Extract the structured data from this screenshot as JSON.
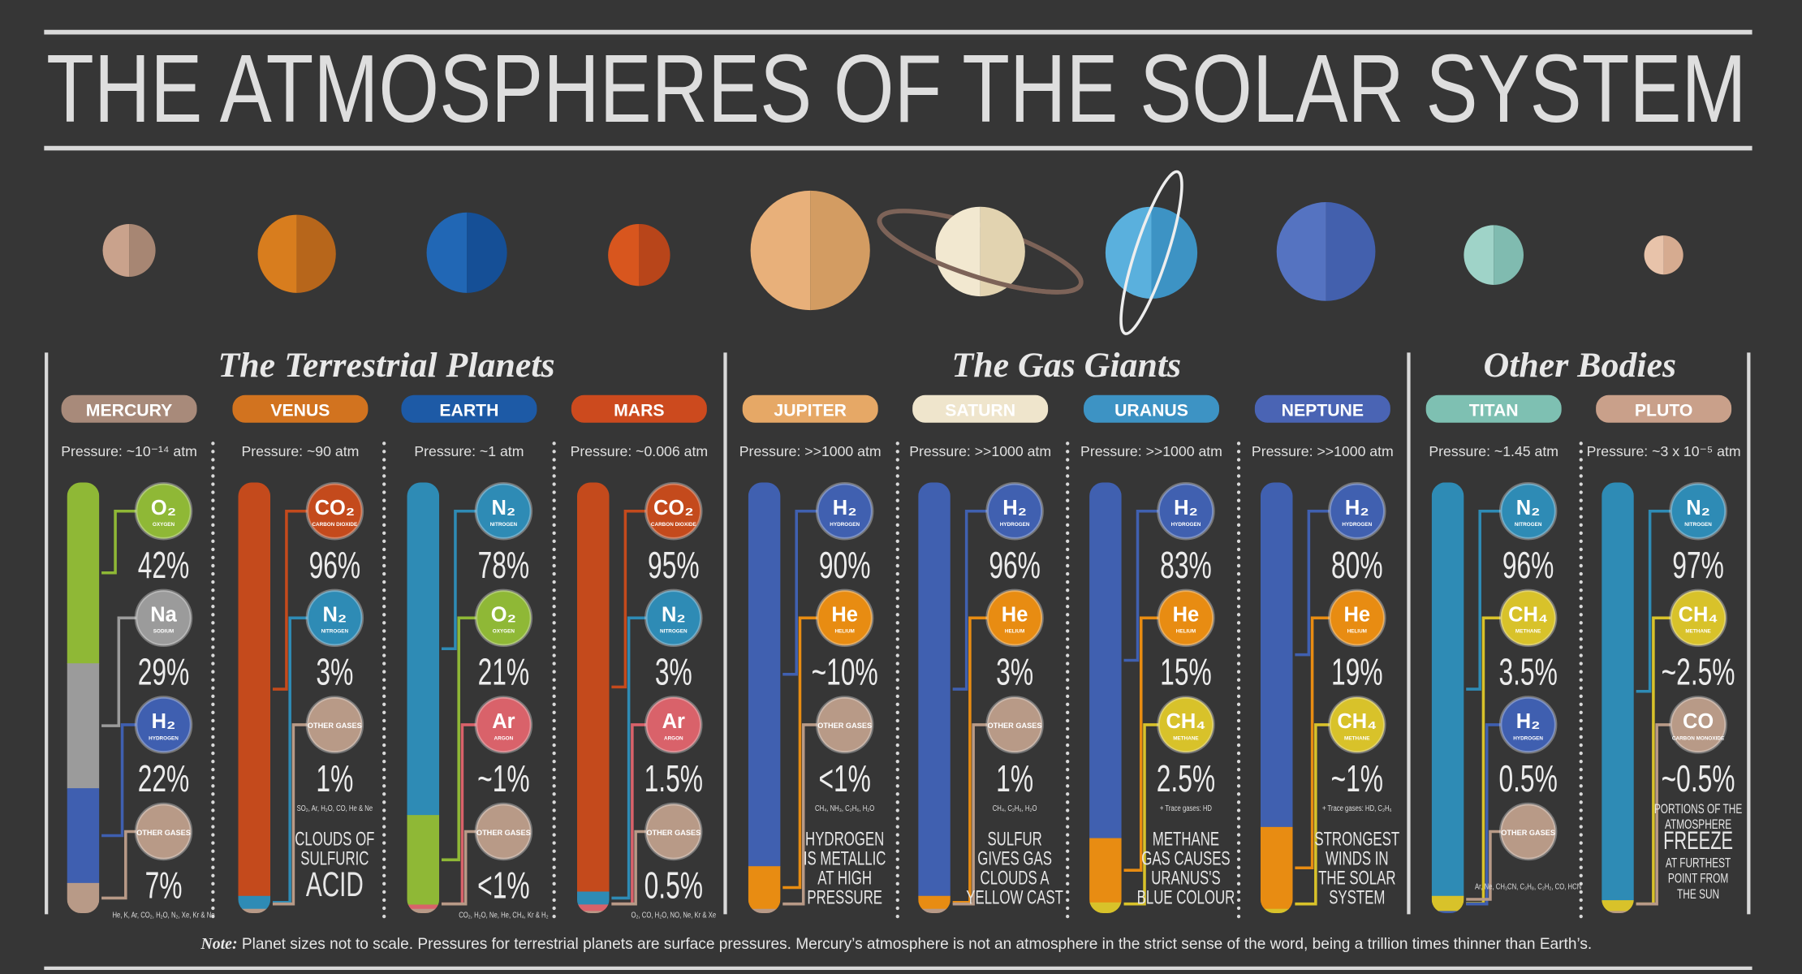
{
  "title": "THE ATMOSPHERES OF THE SOLAR SYSTEM",
  "sections": [
    {
      "title": "The Terrestrial Planets"
    },
    {
      "title": "The Gas Giants"
    },
    {
      "title": "Other Bodies"
    }
  ],
  "planets": [
    {
      "name": "MERCURY",
      "color": "#a88a7a",
      "light": "#c9a28c",
      "dark": "#a78673",
      "pressure": "Pressure: ~10⁻¹⁴ atm",
      "gases": [
        {
          "formula": "O₂",
          "name": "OXYGEN",
          "value": 42,
          "label": "42%",
          "color": "#8fb836"
        },
        {
          "formula": "Na",
          "name": "SODIUM",
          "value": 29,
          "label": "29%",
          "color": "#9b9b9b"
        },
        {
          "formula": "H₂",
          "name": "HYDROGEN",
          "value": 22,
          "label": "22%",
          "color": "#3f5fb0"
        },
        {
          "formula": "OTHER GASES",
          "value": 7,
          "label": "7%",
          "color": "#b89a87",
          "trace": "He, K, Ar, CO₂, H₂O, N₂, Xe, Kr & Ne"
        }
      ]
    },
    {
      "name": "VENUS",
      "color": "#d2731f",
      "light": "#d87d1e",
      "dark": "#b7661b",
      "pressure": "Pressure: ~90 atm",
      "gases": [
        {
          "formula": "CO₂",
          "name": "CARBON DIOXIDE",
          "value": 96,
          "label": "96%",
          "color": "#c44a1c"
        },
        {
          "formula": "N₂",
          "name": "NITROGEN",
          "value": 3,
          "label": "3%",
          "color": "#2e8bb5"
        },
        {
          "formula": "OTHER GASES",
          "value": 1,
          "label": "1%",
          "color": "#b89a87",
          "trace": "SO₂, Ar, H₂O, CO, He & Ne"
        }
      ],
      "note": [
        "CLOUDS OF",
        "SULFURIC",
        "ACID"
      ]
    },
    {
      "name": "EARTH",
      "color": "#1d5aa6",
      "light": "#2167b5",
      "dark": "#154f96",
      "pressure": "Pressure: ~1 atm",
      "gases": [
        {
          "formula": "N₂",
          "name": "NITROGEN",
          "value": 78,
          "label": "78%",
          "color": "#2e8bb5"
        },
        {
          "formula": "O₂",
          "name": "OXYGEN",
          "value": 21,
          "label": "21%",
          "color": "#8fb836"
        },
        {
          "formula": "Ar",
          "name": "ARGON",
          "value": 1,
          "label": "~1%",
          "color": "#d9626a"
        },
        {
          "formula": "OTHER GASES",
          "value": 1,
          "label": "<1%",
          "color": "#b89a87",
          "trace": "CO₂, H₂O, Ne, He, CH₄, Kr & H₂"
        }
      ]
    },
    {
      "name": "MARS",
      "color": "#cc4a1e",
      "light": "#d8561e",
      "dark": "#b8451a",
      "pressure": "Pressure: ~0.006 atm",
      "gases": [
        {
          "formula": "CO₂",
          "name": "CARBON DIOXIDE",
          "value": 95,
          "label": "95%",
          "color": "#c44a1c"
        },
        {
          "formula": "N₂",
          "name": "NITROGEN",
          "value": 3,
          "label": "3%",
          "color": "#2e8bb5"
        },
        {
          "formula": "Ar",
          "name": "ARGON",
          "value": 1.5,
          "label": "1.5%",
          "color": "#d9626a"
        },
        {
          "formula": "OTHER GASES",
          "value": 0.5,
          "label": "0.5%",
          "color": "#b89a87",
          "trace": "O₂, CO, H₂O, NO, Ne, Kr & Xe"
        }
      ]
    },
    {
      "name": "JUPITER",
      "color": "#e6a866",
      "light": "#e8b07a",
      "dark": "#d39c62",
      "pressure": "Pressure: >>1000 atm",
      "gases": [
        {
          "formula": "H₂",
          "name": "HYDROGEN",
          "value": 90,
          "label": "90%",
          "color": "#4060b0"
        },
        {
          "formula": "He",
          "name": "HELIUM",
          "value": 10,
          "label": "~10%",
          "color": "#e88c12"
        },
        {
          "formula": "OTHER GASES",
          "value": 1,
          "label": "<1%",
          "color": "#b89a87",
          "trace": "CH₄, NH₃, C₂H₆, H₂O"
        }
      ],
      "note": [
        "HYDROGEN",
        "IS METALLIC",
        "AT HIGH",
        "PRESSURE"
      ]
    },
    {
      "name": "SATURN",
      "color": "#efe5cc",
      "light": "#f2e8d0",
      "dark": "#e2d3b0",
      "pressure": "Pressure: >>1000 atm",
      "gases": [
        {
          "formula": "H₂",
          "name": "HYDROGEN",
          "value": 96,
          "label": "96%",
          "color": "#4060b0"
        },
        {
          "formula": "He",
          "name": "HELIUM",
          "value": 3,
          "label": "3%",
          "color": "#e88c12"
        },
        {
          "formula": "OTHER GASES",
          "value": 1,
          "label": "1%",
          "color": "#b89a87",
          "trace": "CH₄, C₂H₆, H₂O"
        }
      ],
      "note": [
        "SULFUR",
        "GIVES GAS",
        "CLOUDS A",
        "YELLOW CAST"
      ]
    },
    {
      "name": "URANUS",
      "color": "#3d93c4",
      "light": "#5ab0dd",
      "dark": "#3d93c4",
      "pressure": "Pressure: >>1000 atm",
      "gases": [
        {
          "formula": "H₂",
          "name": "HYDROGEN",
          "value": 83,
          "label": "83%",
          "color": "#4060b0"
        },
        {
          "formula": "He",
          "name": "HELIUM",
          "value": 15,
          "label": "15%",
          "color": "#e88c12"
        },
        {
          "formula": "CH₄",
          "name": "METHANE",
          "value": 2.5,
          "label": "2.5%",
          "color": "#d8c22a",
          "trace": "+ Trace gases: HD"
        }
      ],
      "note": [
        "METHANE",
        "GAS CAUSES",
        "URANUS'S",
        "BLUE COLOUR"
      ]
    },
    {
      "name": "NEPTUNE",
      "color": "#4a64b4",
      "light": "#5573c1",
      "dark": "#4360ad",
      "pressure": "Pressure: >>1000 atm",
      "gases": [
        {
          "formula": "H₂",
          "name": "HYDROGEN",
          "value": 80,
          "label": "80%",
          "color": "#4060b0"
        },
        {
          "formula": "He",
          "name": "HELIUM",
          "value": 19,
          "label": "19%",
          "color": "#e88c12"
        },
        {
          "formula": "CH₄",
          "name": "METHANE",
          "value": 1,
          "label": "~1%",
          "color": "#d8c22a",
          "trace": "+ Trace gases: HD, C₂H₆"
        }
      ],
      "note": [
        "STRONGEST",
        "WINDS IN",
        "THE SOLAR",
        "SYSTEM"
      ]
    },
    {
      "name": "TITAN",
      "color": "#7ec0b2",
      "light": "#9fd3c8",
      "dark": "#80bbb0",
      "pressure": "Pressure: ~1.45 atm",
      "gases": [
        {
          "formula": "N₂",
          "name": "NITROGEN",
          "value": 96,
          "label": "96%",
          "color": "#2e8bb5"
        },
        {
          "formula": "CH₄",
          "name": "METHANE",
          "value": 3.5,
          "label": "3.5%",
          "color": "#d8c22a"
        },
        {
          "formula": "H₂",
          "name": "HYDROGEN",
          "value": 0.5,
          "label": "0.5%",
          "color": "#3f5fb0"
        },
        {
          "formula": "OTHER GASES",
          "color": "#b89a87",
          "trace": "Ar, Ne, CH₃CN, C₃H₈, C₂H₂, CO, HCN"
        }
      ]
    },
    {
      "name": "PLUTO",
      "color": "#c9a08a",
      "light": "#e8c3aa",
      "dark": "#d6ab90",
      "pressure": "Pressure: ~3 x 10⁻⁵ atm",
      "gases": [
        {
          "formula": "N₂",
          "name": "NITROGEN",
          "value": 97,
          "label": "97%",
          "color": "#2e8bb5"
        },
        {
          "formula": "CH₄",
          "name": "METHANE",
          "value": 2.5,
          "label": "~2.5%",
          "color": "#d8c22a"
        },
        {
          "formula": "CO",
          "name": "CARBON MONOXIDE",
          "value": 0.5,
          "label": "~0.5%",
          "color": "#b89a87"
        }
      ],
      "note": [
        "PORTIONS OF THE",
        "ATMOSPHERE",
        "FREEZE",
        "AT FURTHEST",
        "POINT FROM",
        "THE SUN"
      ]
    }
  ],
  "footnote": {
    "lead": "Note:",
    "text": "Planet sizes not to scale. Pressures for terrestrial planets are surface pressures. Mercury’s atmosphere is not an atmosphere in the strict sense of the word, being a trillion times thinner than Earth’s."
  }
}
